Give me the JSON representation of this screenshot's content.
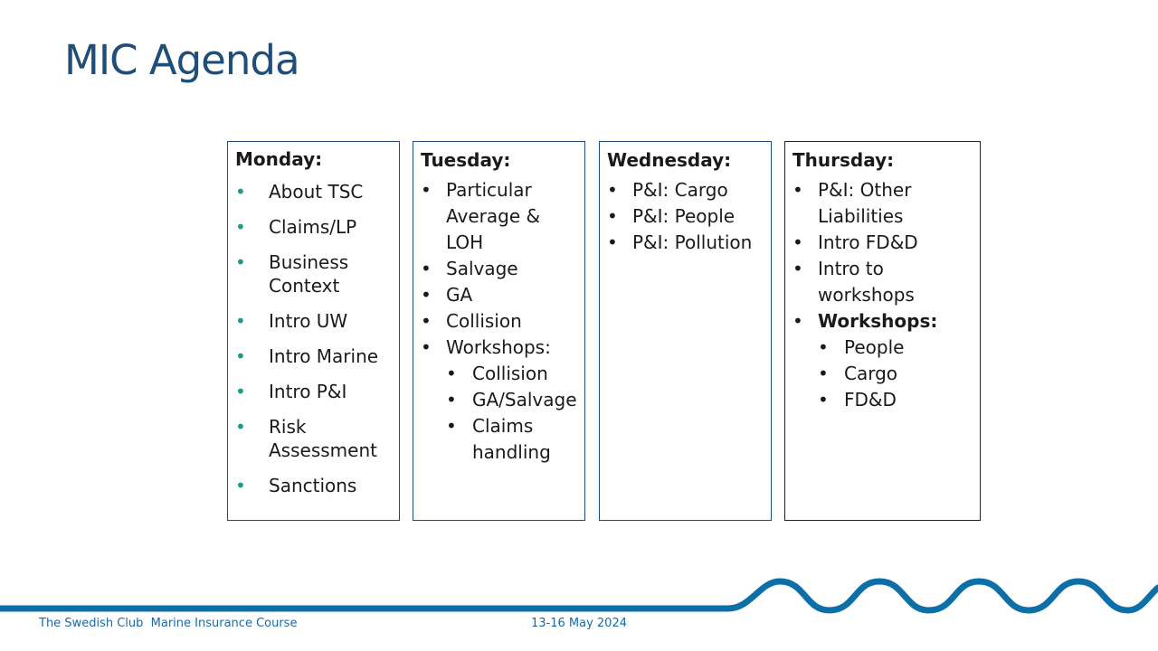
{
  "title": "MIC Agenda",
  "days": {
    "monday": {
      "heading": "Monday:",
      "items": [
        "About TSC",
        "Claims/LP",
        "Business Context",
        "Intro UW",
        "Intro Marine",
        "Intro P&I",
        "Risk Assessment",
        "Sanctions"
      ]
    },
    "tuesday": {
      "heading": "Tuesday:",
      "items": [
        "Particular Average & LOH",
        "Salvage",
        "GA",
        "Collision",
        "Workshops:"
      ],
      "workshops": [
        "Collision",
        "GA/Salvage",
        "Claims handling"
      ]
    },
    "wednesday": {
      "heading": "Wednesday:",
      "items": [
        "P&I: Cargo",
        "P&I: People",
        "P&I: Pollution"
      ]
    },
    "thursday": {
      "heading": "Thursday:",
      "items": [
        "P&I: Other Liabilities",
        "Intro FD&D",
        "Intro to workshops",
        "Workshops:"
      ],
      "workshops": [
        "People",
        "Cargo",
        "FD&D"
      ]
    }
  },
  "footer": {
    "org": "The Swedish Club  Marine Insurance Course",
    "date": "13-16 May 2024"
  },
  "colors": {
    "title": "#1f4e79",
    "accent_bullet": "#1a9c8c",
    "wave": "#0d6fa8",
    "footer_text": "#1a6aa6"
  }
}
